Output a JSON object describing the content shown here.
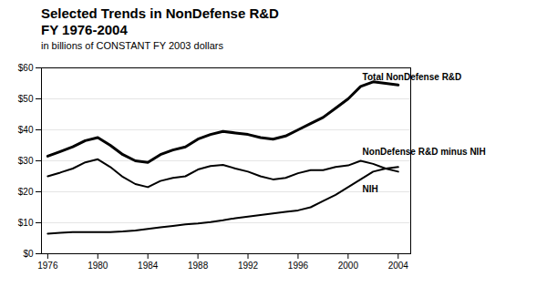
{
  "chart_data": {
    "type": "line",
    "title": "Selected Trends in NonDefense R&D\nFY 1976-2004",
    "subtitle": "in billions of CONSTANT FY 2003 dollars",
    "x": [
      1976,
      1977,
      1978,
      1979,
      1980,
      1981,
      1982,
      1983,
      1984,
      1985,
      1986,
      1987,
      1988,
      1989,
      1990,
      1991,
      1992,
      1993,
      1994,
      1995,
      1996,
      1997,
      1998,
      1999,
      2000,
      2001,
      2002,
      2003,
      2004
    ],
    "series": [
      {
        "name": "Total NonDefense R&D",
        "color": "#000000",
        "values": [
          31.5,
          33.0,
          34.5,
          36.5,
          37.5,
          35.0,
          32.0,
          30.0,
          29.5,
          32.0,
          33.5,
          34.5,
          37.0,
          38.5,
          39.5,
          39.0,
          38.5,
          37.5,
          37.0,
          38.0,
          40.0,
          42.0,
          44.0,
          47.0,
          50.0,
          54.0,
          55.5,
          55.0,
          54.5
        ]
      },
      {
        "name": "NonDefense R&D minus NIH",
        "color": "#000000",
        "values": [
          25.0,
          26.2,
          27.5,
          29.5,
          30.5,
          28.0,
          24.8,
          22.5,
          21.5,
          23.5,
          24.5,
          25.0,
          27.2,
          28.3,
          28.7,
          27.5,
          26.5,
          25.0,
          24.0,
          24.5,
          26.0,
          27.0,
          27.0,
          28.0,
          28.5,
          30.0,
          29.0,
          27.5,
          26.5
        ]
      },
      {
        "name": "NIH",
        "color": "#000000",
        "values": [
          6.5,
          6.8,
          7.0,
          7.0,
          7.0,
          7.0,
          7.2,
          7.5,
          8.0,
          8.5,
          9.0,
          9.5,
          9.8,
          10.2,
          10.8,
          11.5,
          12.0,
          12.5,
          13.0,
          13.5,
          14.0,
          15.0,
          17.0,
          19.0,
          21.5,
          24.0,
          26.5,
          27.5,
          28.0
        ]
      }
    ],
    "xlim": [
      1975.5,
      2005.0
    ],
    "xticks": [
      1976,
      1980,
      1984,
      1988,
      1992,
      1996,
      2000,
      2004
    ],
    "ylim": [
      0,
      60
    ],
    "yticks": [
      {
        "value": 0,
        "label": "$0"
      },
      {
        "value": 10,
        "label": "$10"
      },
      {
        "value": 20,
        "label": "$20"
      },
      {
        "value": 30,
        "label": "$30"
      },
      {
        "value": 40,
        "label": "$40"
      },
      {
        "value": 50,
        "label": "$50"
      },
      {
        "value": 60,
        "label": "$60"
      }
    ],
    "grid": true
  }
}
